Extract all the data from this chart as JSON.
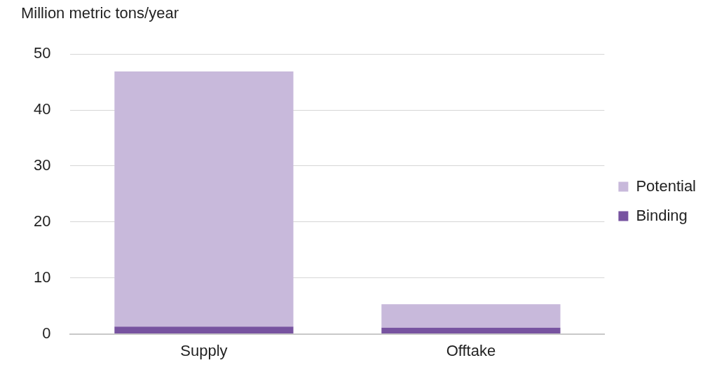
{
  "chart_data": {
    "type": "bar",
    "ylabel": "Million metric tons/year",
    "categories": [
      "Supply",
      "Offtake"
    ],
    "stacked": true,
    "series": [
      {
        "name": "Binding",
        "color": "#7753a0",
        "values": [
          1.3,
          1.1
        ]
      },
      {
        "name": "Potential",
        "color": "#c8b9db",
        "values": [
          45.6,
          4.2
        ]
      }
    ],
    "ylim": [
      0,
      50
    ],
    "yticks": [
      0,
      10,
      20,
      30,
      40,
      50
    ],
    "grid": "y",
    "legend": "right"
  }
}
